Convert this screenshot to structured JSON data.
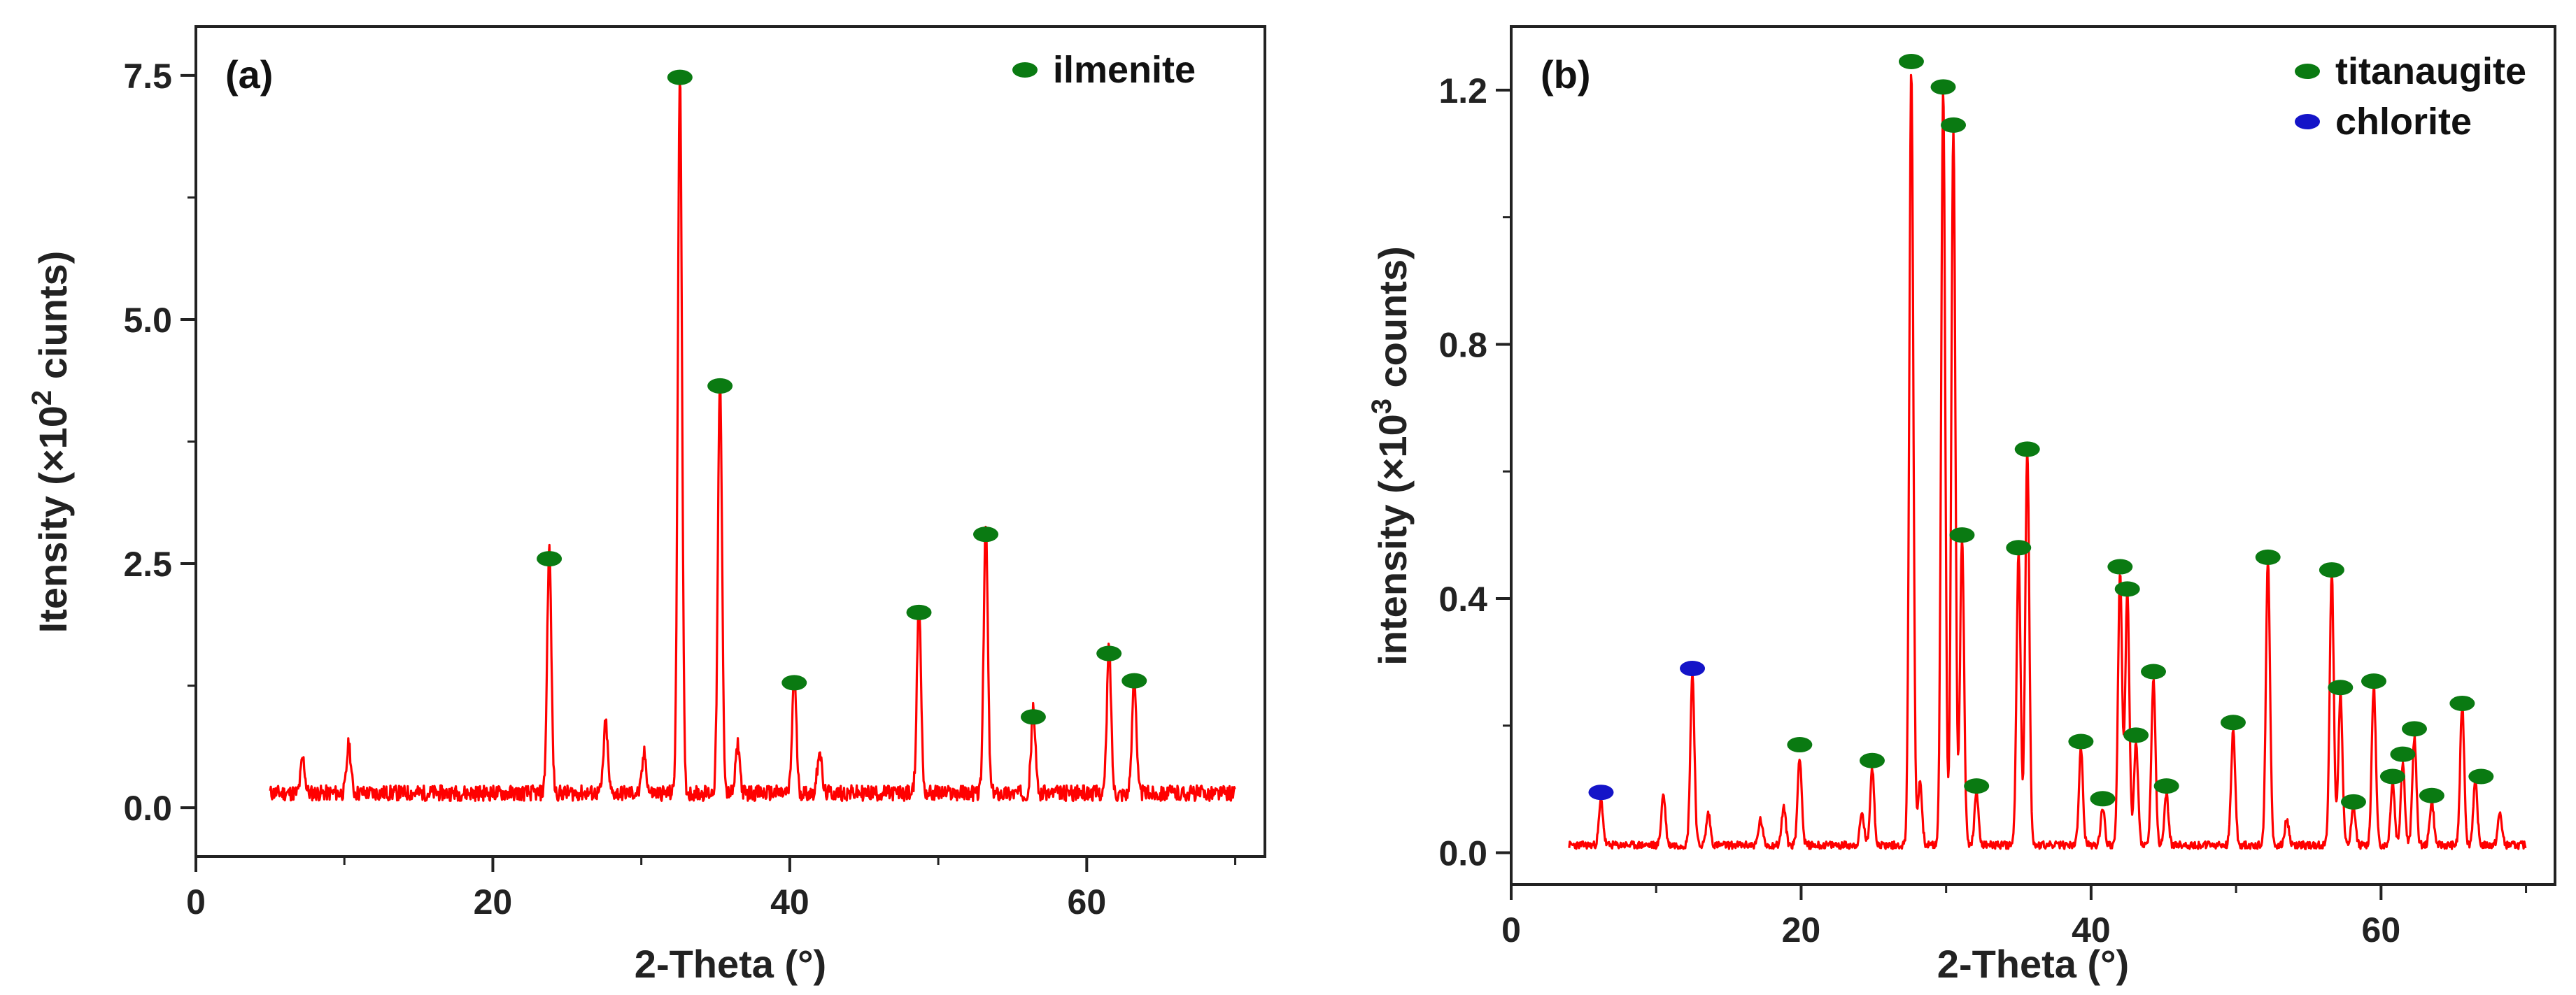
{
  "chart_data": [
    {
      "type": "line",
      "panel_label": "(a)",
      "title": "",
      "xlabel": "2-Theta (°)",
      "ylabel": "Itensity (×10",
      "ylabel_sup": "2",
      "ylabel_tail": " ciunts)",
      "xlim": [
        0,
        72
      ],
      "ylim": [
        -0.5,
        8.0
      ],
      "xticks": [
        0,
        20,
        40,
        60
      ],
      "xtick_labels": [
        "0",
        "20",
        "40",
        "60"
      ],
      "yticks": [
        0.0,
        2.5,
        5.0,
        7.5
      ],
      "ytick_labels": [
        "0.0",
        "2.5",
        "5.0",
        "7.5"
      ],
      "line_color": "#ff0000",
      "x_range": [
        5,
        70
      ],
      "baseline": 0.15,
      "noise": 0.08,
      "peaks": [
        {
          "x": 7.2,
          "y": 0.35
        },
        {
          "x": 10.3,
          "y": 0.5
        },
        {
          "x": 23.8,
          "y": 2.5
        },
        {
          "x": 27.6,
          "y": 0.72
        },
        {
          "x": 30.2,
          "y": 0.4
        },
        {
          "x": 32.6,
          "y": 7.4
        },
        {
          "x": 35.3,
          "y": 4.2
        },
        {
          "x": 36.5,
          "y": 0.5
        },
        {
          "x": 40.3,
          "y": 1.2
        },
        {
          "x": 42.0,
          "y": 0.45
        },
        {
          "x": 48.7,
          "y": 1.95
        },
        {
          "x": 53.2,
          "y": 2.75
        },
        {
          "x": 56.4,
          "y": 0.85
        },
        {
          "x": 61.5,
          "y": 1.5
        },
        {
          "x": 63.2,
          "y": 1.22
        }
      ],
      "markers": [
        {
          "series": "ilmenite",
          "x": 23.8,
          "y": 2.55
        },
        {
          "series": "ilmenite",
          "x": 32.6,
          "y": 7.48
        },
        {
          "series": "ilmenite",
          "x": 35.3,
          "y": 4.32
        },
        {
          "series": "ilmenite",
          "x": 40.3,
          "y": 1.28
        },
        {
          "series": "ilmenite",
          "x": 48.7,
          "y": 2.0
        },
        {
          "series": "ilmenite",
          "x": 53.2,
          "y": 2.8
        },
        {
          "series": "ilmenite",
          "x": 56.4,
          "y": 0.93
        },
        {
          "series": "ilmenite",
          "x": 61.5,
          "y": 1.58
        },
        {
          "series": "ilmenite",
          "x": 63.2,
          "y": 1.3
        }
      ],
      "legend": [
        {
          "name": "ilmenite",
          "color": "#0a7a12"
        }
      ],
      "legend_position": "top-right",
      "grid": false
    },
    {
      "type": "line",
      "panel_label": "(b)",
      "title": "",
      "xlabel": "2-Theta (°)",
      "ylabel": "intensity (×10",
      "ylabel_sup": "3",
      "ylabel_tail": " counts)",
      "xlim": [
        0,
        72
      ],
      "ylim": [
        -0.05,
        1.3
      ],
      "xticks": [
        0,
        20,
        40,
        60
      ],
      "xtick_labels": [
        "0",
        "20",
        "40",
        "60"
      ],
      "yticks": [
        0.0,
        0.4,
        0.8,
        1.2
      ],
      "ytick_labels": [
        "0.0",
        "0.4",
        "0.8",
        "1.2"
      ],
      "line_color": "#ff0000",
      "x_range": [
        4,
        70
      ],
      "baseline": 0.012,
      "noise": 0.006,
      "peaks": [
        {
          "x": 6.2,
          "y": 0.07
        },
        {
          "x": 10.5,
          "y": 0.08
        },
        {
          "x": 12.5,
          "y": 0.27
        },
        {
          "x": 13.6,
          "y": 0.05
        },
        {
          "x": 17.2,
          "y": 0.04
        },
        {
          "x": 18.8,
          "y": 0.06
        },
        {
          "x": 19.9,
          "y": 0.14
        },
        {
          "x": 24.2,
          "y": 0.05
        },
        {
          "x": 24.9,
          "y": 0.12
        },
        {
          "x": 27.6,
          "y": 1.22
        },
        {
          "x": 28.2,
          "y": 0.1
        },
        {
          "x": 29.8,
          "y": 1.19
        },
        {
          "x": 30.5,
          "y": 1.13
        },
        {
          "x": 31.1,
          "y": 0.48
        },
        {
          "x": 32.1,
          "y": 0.08
        },
        {
          "x": 35.0,
          "y": 0.46
        },
        {
          "x": 35.6,
          "y": 0.62
        },
        {
          "x": 39.3,
          "y": 0.15
        },
        {
          "x": 40.8,
          "y": 0.06
        },
        {
          "x": 42.0,
          "y": 0.43
        },
        {
          "x": 42.5,
          "y": 0.4
        },
        {
          "x": 43.1,
          "y": 0.16
        },
        {
          "x": 44.3,
          "y": 0.26
        },
        {
          "x": 45.2,
          "y": 0.08
        },
        {
          "x": 49.8,
          "y": 0.18
        },
        {
          "x": 52.2,
          "y": 0.45
        },
        {
          "x": 53.5,
          "y": 0.04
        },
        {
          "x": 56.6,
          "y": 0.43
        },
        {
          "x": 57.2,
          "y": 0.24
        },
        {
          "x": 58.1,
          "y": 0.06
        },
        {
          "x": 59.5,
          "y": 0.25
        },
        {
          "x": 60.8,
          "y": 0.1
        },
        {
          "x": 61.5,
          "y": 0.13
        },
        {
          "x": 62.3,
          "y": 0.17
        },
        {
          "x": 63.5,
          "y": 0.07
        },
        {
          "x": 65.6,
          "y": 0.22
        },
        {
          "x": 66.5,
          "y": 0.1
        },
        {
          "x": 68.2,
          "y": 0.05
        }
      ],
      "markers": [
        {
          "series": "chlorite",
          "x": 6.2,
          "y": 0.095
        },
        {
          "series": "chlorite",
          "x": 12.5,
          "y": 0.29
        },
        {
          "series": "titanaugite",
          "x": 19.9,
          "y": 0.17
        },
        {
          "series": "titanaugite",
          "x": 24.9,
          "y": 0.145
        },
        {
          "series": "titanaugite",
          "x": 27.6,
          "y": 1.245
        },
        {
          "series": "titanaugite",
          "x": 29.8,
          "y": 1.205
        },
        {
          "series": "titanaugite",
          "x": 30.5,
          "y": 1.145
        },
        {
          "series": "titanaugite",
          "x": 31.1,
          "y": 0.5
        },
        {
          "series": "titanaugite",
          "x": 32.1,
          "y": 0.105
        },
        {
          "series": "titanaugite",
          "x": 35.0,
          "y": 0.48
        },
        {
          "series": "titanaugite",
          "x": 35.6,
          "y": 0.635
        },
        {
          "series": "titanaugite",
          "x": 39.3,
          "y": 0.175
        },
        {
          "series": "titanaugite",
          "x": 40.8,
          "y": 0.085
        },
        {
          "series": "titanaugite",
          "x": 42.0,
          "y": 0.45
        },
        {
          "series": "titanaugite",
          "x": 42.5,
          "y": 0.415
        },
        {
          "series": "titanaugite",
          "x": 43.1,
          "y": 0.185
        },
        {
          "series": "titanaugite",
          "x": 44.3,
          "y": 0.285
        },
        {
          "series": "titanaugite",
          "x": 45.2,
          "y": 0.105
        },
        {
          "series": "titanaugite",
          "x": 49.8,
          "y": 0.205
        },
        {
          "series": "titanaugite",
          "x": 52.2,
          "y": 0.465
        },
        {
          "series": "titanaugite",
          "x": 56.6,
          "y": 0.445
        },
        {
          "series": "titanaugite",
          "x": 57.2,
          "y": 0.26
        },
        {
          "series": "titanaugite",
          "x": 58.1,
          "y": 0.08
        },
        {
          "series": "titanaugite",
          "x": 59.5,
          "y": 0.27
        },
        {
          "series": "titanaugite",
          "x": 60.8,
          "y": 0.12
        },
        {
          "series": "titanaugite",
          "x": 61.5,
          "y": 0.155
        },
        {
          "series": "titanaugite",
          "x": 62.3,
          "y": 0.195
        },
        {
          "series": "titanaugite",
          "x": 63.5,
          "y": 0.09
        },
        {
          "series": "titanaugite",
          "x": 65.6,
          "y": 0.235
        },
        {
          "series": "titanaugite",
          "x": 66.9,
          "y": 0.12
        }
      ],
      "legend": [
        {
          "name": "titanaugite",
          "color": "#0a7a12"
        },
        {
          "name": "chlorite",
          "color": "#1414c8"
        }
      ],
      "legend_position": "top-right",
      "grid": false
    }
  ]
}
